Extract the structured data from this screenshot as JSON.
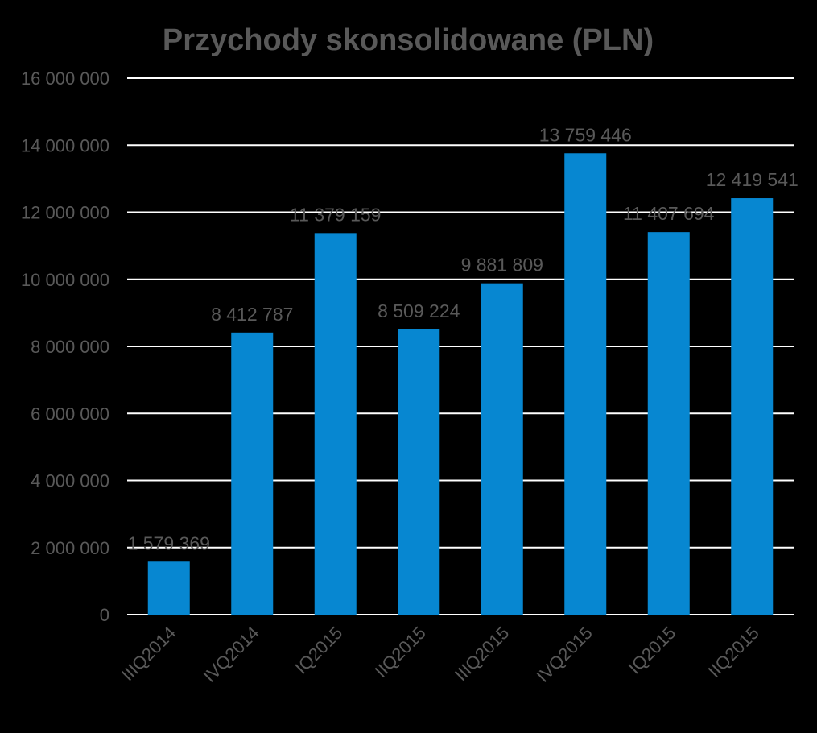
{
  "chart_data": {
    "type": "bar",
    "title": "Przychody skonsolidowane (PLN)",
    "xlabel": "",
    "ylabel": "",
    "categories": [
      "IIIQ2014",
      "IVQ2014",
      "IQ2015",
      "IIQ2015",
      "IIIQ2015",
      "IVQ2015",
      "IQ2015",
      "IIQ2015"
    ],
    "values": [
      1579369,
      8412787,
      11379159,
      8509224,
      9881809,
      13759446,
      11407694,
      12419541
    ],
    "data_labels": [
      "1 579 369",
      "8 412 787",
      "11 379 159",
      "8 509 224",
      "9 881 809",
      "13 759 446",
      "11 407 694",
      "12 419 541"
    ],
    "ylim": [
      0,
      16000000
    ],
    "yticks": [
      0,
      2000000,
      4000000,
      6000000,
      8000000,
      10000000,
      12000000,
      14000000,
      16000000
    ],
    "ytick_labels": [
      "0",
      "2 000 000",
      "4 000 000",
      "6 000 000",
      "8 000 000",
      "10 000 000",
      "12 000 000",
      "14 000 000",
      "16 000 000"
    ],
    "grid": true,
    "legend": "none",
    "colors": {
      "background": "#000000",
      "bar": "#0787d1",
      "text": "#595959",
      "grid": "#ffffff"
    }
  }
}
